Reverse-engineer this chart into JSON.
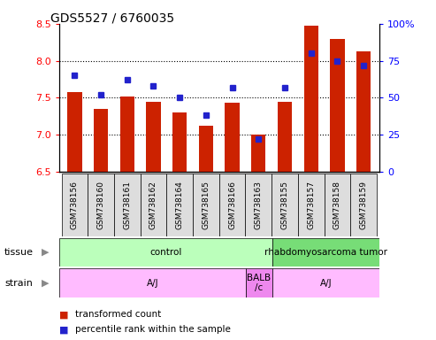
{
  "title": "GDS5527 / 6760035",
  "samples": [
    "GSM738156",
    "GSM738160",
    "GSM738161",
    "GSM738162",
    "GSM738164",
    "GSM738165",
    "GSM738166",
    "GSM738163",
    "GSM738155",
    "GSM738157",
    "GSM738158",
    "GSM738159"
  ],
  "transformed_count": [
    7.58,
    7.35,
    7.52,
    7.45,
    7.3,
    7.12,
    7.43,
    7.0,
    7.45,
    8.48,
    8.3,
    8.13
  ],
  "percentile_rank": [
    65,
    52,
    62,
    58,
    50,
    38,
    57,
    22,
    57,
    80,
    75,
    72
  ],
  "ylim_left": [
    6.5,
    8.5
  ],
  "ylim_right": [
    0,
    100
  ],
  "yticks_left": [
    6.5,
    7.0,
    7.5,
    8.0,
    8.5
  ],
  "yticks_right": [
    0,
    25,
    50,
    75,
    100
  ],
  "bar_color": "#cc2200",
  "dot_color": "#2222cc",
  "tissue_groups": [
    {
      "label": "control",
      "start": 0,
      "end": 8,
      "color": "#bbffbb"
    },
    {
      "label": "rhabdomyosarcoma tumor",
      "start": 8,
      "end": 12,
      "color": "#77dd77"
    }
  ],
  "strain_groups": [
    {
      "label": "A/J",
      "start": 0,
      "end": 7,
      "color": "#ffbbff"
    },
    {
      "label": "BALB\n/c",
      "start": 7,
      "end": 8,
      "color": "#ee88ee"
    },
    {
      "label": "A/J",
      "start": 8,
      "end": 12,
      "color": "#ffbbff"
    }
  ],
  "legend_bar_color": "#cc2200",
  "legend_dot_color": "#2222cc",
  "legend_bar_label": "transformed count",
  "legend_dot_label": "percentile rank within the sample",
  "tissue_label": "tissue",
  "strain_label": "strain",
  "title_fontsize": 10,
  "tick_fontsize": 8,
  "bar_width": 0.55,
  "sample_box_color": "#dddddd",
  "grid_yticks": [
    7.0,
    7.5,
    8.0
  ]
}
